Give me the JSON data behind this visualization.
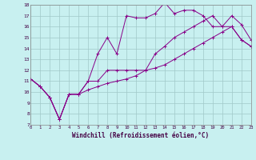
{
  "xlabel": "Windchill (Refroidissement éolien,°C)",
  "bg_color": "#c8f0f0",
  "grid_color": "#a0c8c8",
  "line_color": "#880088",
  "xmin": 0,
  "xmax": 23,
  "ymin": 7,
  "ymax": 18,
  "line1_x": [
    0,
    1,
    2,
    3,
    4,
    5,
    6,
    7,
    8,
    9,
    10,
    11,
    12,
    13,
    14,
    15,
    16,
    17,
    18,
    19,
    20,
    21,
    22,
    23
  ],
  "line1_y": [
    11.2,
    10.5,
    9.5,
    7.5,
    9.8,
    9.8,
    11.0,
    13.5,
    15.0,
    13.5,
    17.0,
    16.8,
    16.8,
    17.2,
    18.2,
    17.2,
    17.5,
    17.5,
    17.0,
    16.0,
    16.0,
    17.0,
    16.2,
    14.8
  ],
  "line2_x": [
    0,
    1,
    2,
    3,
    4,
    5,
    6,
    7,
    8,
    9,
    10,
    11,
    12,
    13,
    14,
    15,
    16,
    17,
    18,
    19,
    20,
    21,
    22,
    23
  ],
  "line2_y": [
    11.2,
    10.5,
    9.5,
    7.5,
    9.8,
    9.8,
    11.0,
    11.0,
    12.0,
    12.0,
    12.0,
    12.0,
    12.0,
    13.5,
    14.2,
    15.0,
    15.5,
    16.0,
    16.5,
    17.0,
    16.0,
    16.0,
    14.8,
    14.2
  ],
  "line3_x": [
    0,
    1,
    2,
    3,
    4,
    5,
    6,
    7,
    8,
    9,
    10,
    11,
    12,
    13,
    14,
    15,
    16,
    17,
    18,
    19,
    20,
    21,
    22,
    23
  ],
  "line3_y": [
    11.2,
    10.5,
    9.5,
    7.5,
    9.8,
    9.8,
    10.2,
    10.5,
    10.8,
    11.0,
    11.2,
    11.5,
    12.0,
    12.2,
    12.5,
    13.0,
    13.5,
    14.0,
    14.5,
    15.0,
    15.5,
    16.0,
    14.8,
    14.2
  ]
}
